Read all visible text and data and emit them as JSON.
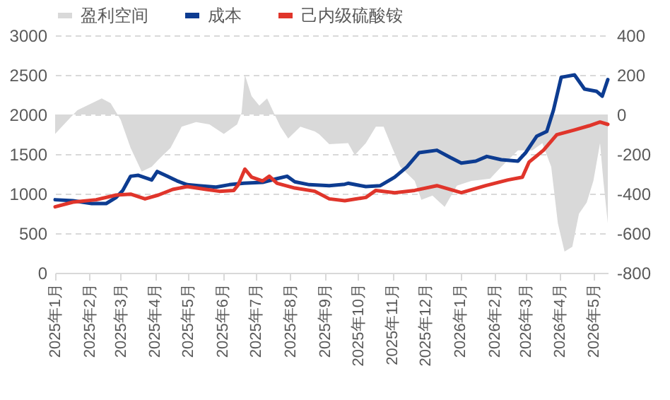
{
  "chart_data": {
    "type": "line",
    "series": [
      {
        "name": "盈利空间",
        "type": "area",
        "axis": "y2",
        "color": "#d9d9d9",
        "x": [
          "2025-01-01",
          "2025-01-09",
          "2025-01-21",
          "2025-02-12",
          "2025-02-20",
          "2025-03-01",
          "2025-03-10",
          "2025-03-20",
          "2025-03-29",
          "2025-04-04",
          "2025-04-15",
          "2025-04-25",
          "2025-05-08",
          "2025-05-20",
          "2025-06-02",
          "2025-06-14",
          "2025-06-18",
          "2025-06-21",
          "2025-06-27",
          "2025-07-04",
          "2025-07-11",
          "2025-07-17",
          "2025-07-23",
          "2025-07-30",
          "2025-08-10",
          "2025-08-23",
          "2025-08-27",
          "2025-09-05",
          "2025-09-22",
          "2025-09-28",
          "2025-10-08",
          "2025-10-17",
          "2025-10-24",
          "2025-10-30",
          "2025-11-08",
          "2025-11-21",
          "2025-11-27",
          "2025-12-07",
          "2025-12-18",
          "2025-12-29",
          "2026-01-11",
          "2026-01-28",
          "2026-02-07",
          "2026-02-22",
          "2026-03-07",
          "2026-03-16",
          "2026-03-24",
          "2026-03-30",
          "2026-04-05",
          "2026-04-12",
          "2026-04-18",
          "2026-04-25",
          "2026-05-01",
          "2026-05-07",
          "2026-05-10",
          "2026-05-14"
        ],
        "values": [
          -98,
          -50,
          21,
          81,
          57,
          -26,
          -169,
          -288,
          -264,
          -229,
          -169,
          -62,
          -38,
          -50,
          -98,
          -50,
          9,
          200,
          93,
          45,
          81,
          9,
          -62,
          -121,
          -62,
          -86,
          -100,
          -150,
          -145,
          -205,
          -145,
          -62,
          -62,
          -145,
          -264,
          -336,
          -431,
          -410,
          -467,
          -360,
          -336,
          -324,
          -264,
          -181,
          -181,
          -145,
          -264,
          -550,
          -693,
          -669,
          -502,
          -445,
          -336,
          -145,
          -336,
          -550
        ]
      },
      {
        "name": "成本",
        "type": "line",
        "color": "#0d3c91",
        "x": [
          "2025-01-01",
          "2025-01-17",
          "2025-02-03",
          "2025-02-16",
          "2025-02-25",
          "2025-03-03",
          "2025-03-10",
          "2025-03-17",
          "2025-03-29",
          "2025-04-03",
          "2025-04-12",
          "2025-04-21",
          "2025-04-30",
          "2025-05-10",
          "2025-05-26",
          "2025-06-07",
          "2025-06-20",
          "2025-07-07",
          "2025-07-20",
          "2025-07-29",
          "2025-08-05",
          "2025-08-18",
          "2025-09-05",
          "2025-09-19",
          "2025-09-22",
          "2025-10-08",
          "2025-10-21",
          "2025-11-03",
          "2025-11-14",
          "2025-11-25",
          "2025-12-11",
          "2025-12-23",
          "2026-01-02",
          "2026-01-15",
          "2026-01-25",
          "2026-02-07",
          "2026-02-22",
          "2026-03-01",
          "2026-03-11",
          "2026-03-20",
          "2026-03-26",
          "2026-04-02",
          "2026-04-14",
          "2026-04-23",
          "2026-05-04",
          "2026-05-09",
          "2026-05-14"
        ],
        "values": [
          923,
          910,
          875,
          875,
          952,
          1041,
          1220,
          1232,
          1173,
          1280,
          1220,
          1160,
          1113,
          1101,
          1083,
          1113,
          1131,
          1143,
          1190,
          1220,
          1149,
          1113,
          1101,
          1119,
          1131,
          1089,
          1101,
          1208,
          1339,
          1518,
          1548,
          1458,
          1387,
          1411,
          1470,
          1429,
          1411,
          1518,
          1726,
          1786,
          2054,
          2470,
          2500,
          2321,
          2292,
          2232,
          2441
        ]
      },
      {
        "name": "己内级硫酸铵",
        "type": "line",
        "color": "#e0352b",
        "x": [
          "2025-01-01",
          "2025-01-17",
          "2025-02-07",
          "2025-02-25",
          "2025-03-10",
          "2025-03-23",
          "2025-04-04",
          "2025-04-17",
          "2025-04-30",
          "2025-05-17",
          "2025-05-29",
          "2025-06-11",
          "2025-06-15",
          "2025-06-21",
          "2025-06-27",
          "2025-07-07",
          "2025-07-13",
          "2025-07-20",
          "2025-08-05",
          "2025-08-23",
          "2025-09-05",
          "2025-09-19",
          "2025-10-08",
          "2025-10-17",
          "2025-11-03",
          "2025-11-21",
          "2025-12-11",
          "2026-01-02",
          "2026-01-24",
          "2026-02-13",
          "2026-02-26",
          "2026-03-04",
          "2026-03-17",
          "2026-03-29",
          "2026-04-14",
          "2026-04-27",
          "2026-05-07",
          "2026-05-14"
        ],
        "values": [
          833,
          893,
          923,
          982,
          994,
          934,
          982,
          1054,
          1089,
          1054,
          1030,
          1041,
          1113,
          1310,
          1208,
          1160,
          1220,
          1131,
          1071,
          1030,
          934,
          910,
          952,
          1041,
          1012,
          1041,
          1101,
          1012,
          1101,
          1173,
          1208,
          1398,
          1548,
          1744,
          1804,
          1857,
          1905,
          1875
        ]
      }
    ],
    "xlim": [
      "2025-01-01",
      "2026-05-14"
    ],
    "xticks": [
      {
        "value": "2025-01-01",
        "label": "2025年1月"
      },
      {
        "value": "2025-02-01",
        "label": "2025年2月"
      },
      {
        "value": "2025-03-01",
        "label": "2025年3月"
      },
      {
        "value": "2025-04-01",
        "label": "2025年4月"
      },
      {
        "value": "2025-05-01",
        "label": "2025年5月"
      },
      {
        "value": "2025-06-01",
        "label": "2025年6月"
      },
      {
        "value": "2025-07-01",
        "label": "2025年7月"
      },
      {
        "value": "2025-08-01",
        "label": "2025年8月"
      },
      {
        "value": "2025-09-01",
        "label": "2025年9月"
      },
      {
        "value": "2025-10-01",
        "label": "2025年10月"
      },
      {
        "value": "2025-11-01",
        "label": "2025年11月"
      },
      {
        "value": "2025-12-01",
        "label": "2025年12月"
      },
      {
        "value": "2026-01-01",
        "label": "2026年1月"
      },
      {
        "value": "2026-02-01",
        "label": "2026年2月"
      },
      {
        "value": "2026-03-01",
        "label": "2026年3月"
      },
      {
        "value": "2026-04-01",
        "label": "2026年4月"
      },
      {
        "value": "2026-05-01",
        "label": "2026年5月"
      }
    ],
    "ylim": [
      0,
      3000
    ],
    "yticks": [
      0,
      500,
      1000,
      1500,
      2000,
      2500,
      3000
    ],
    "y2lim": [
      -800,
      400
    ],
    "y2ticks": [
      -800,
      -600,
      -400,
      -200,
      0,
      200,
      400
    ],
    "grid": "y",
    "legend": "top",
    "line_style": "solid",
    "marker": "none"
  }
}
